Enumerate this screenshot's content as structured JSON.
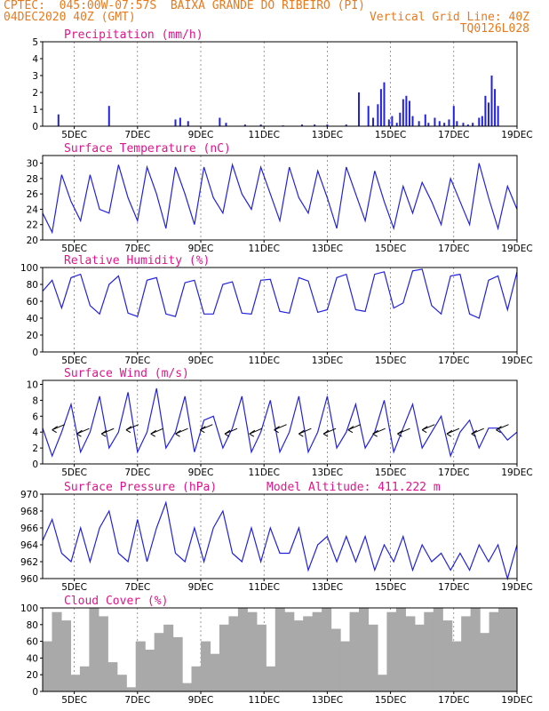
{
  "header": {
    "line1": "CPTEC:  045:00W-07:57S  BAIXA GRANDE DO RIBEIRO (PI)",
    "line2_left": "04DEC2020 40Z (GMT)",
    "line2_right": "Vertical Grid Line: 40Z",
    "line3_right": "TQ0126L028"
  },
  "x_axis": {
    "tick_labels": [
      "5DEC",
      "7DEC",
      "9DEC",
      "11DEC",
      "13DEC",
      "15DEC",
      "17DEC",
      "19DEC"
    ],
    "tick_days": [
      1,
      3,
      5,
      7,
      9,
      11,
      13,
      15
    ],
    "range_days": [
      0,
      15
    ]
  },
  "chart_data": [
    {
      "id": "precip",
      "type": "bar",
      "title": "Precipitation (mm/h)",
      "ylim": [
        0,
        5
      ],
      "yticks": [
        "0",
        "1",
        "2",
        "3",
        "4",
        "5"
      ],
      "x_days": [
        0.5,
        2.1,
        4.2,
        4.35,
        4.6,
        5.6,
        5.8,
        6.4,
        6.9,
        7.6,
        8.2,
        8.6,
        9.0,
        9.6,
        10.0,
        10.3,
        10.45,
        10.6,
        10.7,
        10.8,
        10.95,
        11.05,
        11.2,
        11.3,
        11.4,
        11.5,
        11.6,
        11.7,
        11.9,
        12.1,
        12.2,
        12.4,
        12.55,
        12.7,
        12.85,
        13.0,
        13.1,
        13.3,
        13.45,
        13.6,
        13.8,
        13.9,
        14.0,
        14.1,
        14.2,
        14.3,
        14.4
      ],
      "values": [
        0.7,
        1.2,
        0.4,
        0.5,
        0.3,
        0.5,
        0.2,
        0.1,
        0.1,
        0.05,
        0.1,
        0.1,
        0.1,
        0.1,
        2.0,
        1.2,
        0.5,
        1.3,
        2.2,
        2.6,
        0.4,
        0.6,
        0.2,
        0.8,
        1.6,
        1.8,
        1.5,
        0.6,
        0.3,
        0.7,
        0.2,
        0.5,
        0.3,
        0.2,
        0.4,
        1.2,
        0.3,
        0.2,
        0.1,
        0.2,
        0.5,
        0.6,
        1.8,
        1.4,
        3.0,
        2.2,
        1.2
      ]
    },
    {
      "id": "temp",
      "type": "line",
      "title": "Surface Temperature (nC)",
      "ylim": [
        20,
        31
      ],
      "yticks": [
        "20",
        "22",
        "24",
        "26",
        "28",
        "30"
      ],
      "series": [
        {
          "values": [
            23.5,
            21,
            28.5,
            25,
            22.5,
            28.5,
            24,
            23.5,
            29.8,
            25.5,
            22.5,
            29.5,
            26,
            21.5,
            29.5,
            26,
            22,
            29.5,
            25.5,
            23.5,
            29.8,
            26,
            24,
            29.5,
            26,
            22.5,
            29.5,
            25.5,
            23.5,
            29,
            25.5,
            21.5,
            29.5,
            26,
            22.5,
            29,
            25,
            21.5,
            27,
            23.5,
            27.5,
            25,
            22,
            28,
            25,
            22,
            30,
            25.5,
            21.5,
            27,
            24
          ]
        }
      ]
    },
    {
      "id": "rh",
      "type": "line",
      "title": "Relative Humidity (%)",
      "ylim": [
        0,
        100
      ],
      "yticks": [
        "0",
        "20",
        "40",
        "60",
        "80",
        "100"
      ],
      "series": [
        {
          "values": [
            72,
            85,
            52,
            88,
            92,
            55,
            45,
            80,
            90,
            46,
            42,
            85,
            88,
            45,
            42,
            82,
            85,
            45,
            45,
            80,
            83,
            46,
            45,
            85,
            86,
            48,
            46,
            88,
            84,
            47,
            50,
            88,
            92,
            50,
            48,
            92,
            95,
            52,
            58,
            96,
            98,
            55,
            45,
            90,
            92,
            45,
            40,
            85,
            90,
            50,
            95
          ]
        }
      ]
    },
    {
      "id": "wind",
      "type": "line",
      "title": "Surface Wind (m/s)",
      "ylim": [
        0,
        10.5
      ],
      "yticks": [
        "0",
        "2",
        "4",
        "6",
        "8",
        "10"
      ],
      "series": [
        {
          "values": [
            4.5,
            1,
            4,
            7.5,
            1.5,
            4,
            8.5,
            2,
            4,
            9,
            1.5,
            4,
            9.5,
            2,
            4,
            8.5,
            1.5,
            5.5,
            6,
            2,
            4.5,
            8.5,
            1.5,
            4,
            8,
            1.5,
            4,
            8.5,
            1.5,
            4,
            8.5,
            2,
            4,
            7.5,
            2,
            4,
            8,
            1.5,
            4.5,
            7.5,
            2,
            4,
            6,
            1,
            4,
            5.5,
            2,
            4.5,
            4.5,
            3,
            4
          ]
        }
      ],
      "vector_arrows": 19
    },
    {
      "id": "pres",
      "type": "line",
      "title": "Surface Pressure (hPa)",
      "annotation": "Model Altitude: 411.222 m",
      "ylim": [
        960,
        970
      ],
      "yticks": [
        "960",
        "962",
        "964",
        "966",
        "968",
        "970"
      ],
      "series": [
        {
          "values": [
            964.5,
            967,
            963,
            962,
            966,
            962,
            966,
            968,
            963,
            962,
            967,
            962,
            966,
            969,
            963,
            962,
            966,
            962,
            966,
            968,
            963,
            962,
            966,
            962,
            966,
            963,
            963,
            966,
            961,
            964,
            965,
            962,
            965,
            962,
            965,
            961,
            964,
            962,
            965,
            961,
            964,
            962,
            963,
            961,
            963,
            961,
            964,
            962,
            964,
            960,
            964
          ]
        }
      ]
    },
    {
      "id": "cloud",
      "type": "area",
      "title": "Cloud Cover (%)",
      "ylim": [
        0,
        100
      ],
      "yticks": [
        "0",
        "20",
        "40",
        "60",
        "80",
        "100"
      ],
      "values": [
        60,
        95,
        85,
        20,
        30,
        100,
        90,
        35,
        20,
        5,
        60,
        50,
        70,
        80,
        65,
        10,
        30,
        60,
        45,
        80,
        90,
        100,
        95,
        80,
        30,
        100,
        95,
        85,
        90,
        95,
        100,
        75,
        60,
        95,
        100,
        80,
        20,
        95,
        100,
        90,
        80,
        95,
        100,
        85,
        60,
        90,
        100,
        70,
        95,
        100,
        100
      ]
    }
  ],
  "colors": {
    "line": "#2222dd",
    "title": "#e0148c",
    "header": "#e87a1e",
    "cloud_fill": "#a9a9a9"
  }
}
